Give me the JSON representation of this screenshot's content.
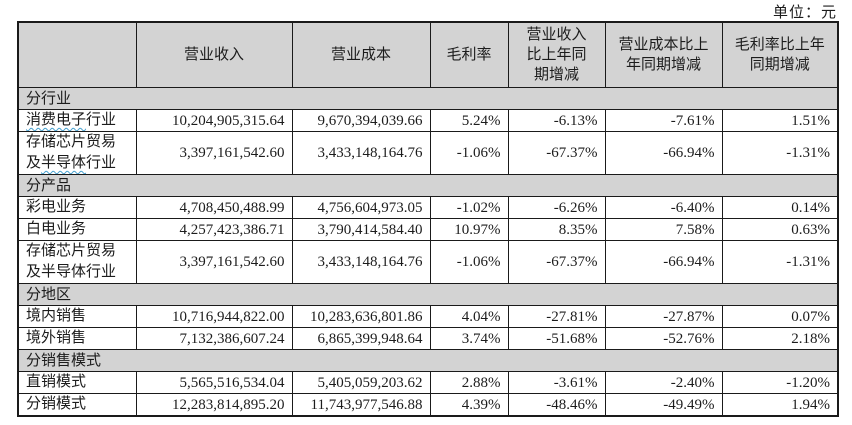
{
  "unit_label": "单位：元",
  "colors": {
    "header_bg": "#d3d3d3",
    "border": "#1a1a1a",
    "text": "#1c1c1c",
    "wavy_underline": "#44a0cf"
  },
  "table": {
    "columns": [
      "",
      "营业收入",
      "营业成本",
      "毛利率",
      "营业收入\n比上年同\n期增减",
      "营业成本比上\n年同期增减",
      "毛利率比上年\n同期增减"
    ],
    "sections": [
      {
        "label": "分行业",
        "rows": [
          {
            "label": "消费电子行业",
            "wavy": "消费电子",
            "cells": [
              "10,204,905,315.64",
              "9,670,394,039.66",
              "5.24%",
              "-6.13%",
              "-7.61%",
              "1.51%"
            ]
          },
          {
            "label": "存储芯片贸易\n及半导体行业",
            "wavy": "半导体",
            "cells": [
              "3,397,161,542.60",
              "3,433,148,164.76",
              "-1.06%",
              "-67.37%",
              "-66.94%",
              "-1.31%"
            ]
          }
        ]
      },
      {
        "label": "分产品",
        "rows": [
          {
            "label": "彩电业务",
            "cells": [
              "4,708,450,488.99",
              "4,756,604,973.05",
              "-1.02%",
              "-6.26%",
              "-6.40%",
              "0.14%"
            ]
          },
          {
            "label": "白电业务",
            "cells": [
              "4,257,423,386.71",
              "3,790,414,584.40",
              "10.97%",
              "8.35%",
              "7.58%",
              "0.63%"
            ]
          },
          {
            "label": "存储芯片贸易\n及半导体行业",
            "cells": [
              "3,397,161,542.60",
              "3,433,148,164.76",
              "-1.06%",
              "-67.37%",
              "-66.94%",
              "-1.31%"
            ]
          }
        ]
      },
      {
        "label": "分地区",
        "rows": [
          {
            "label": "境内销售",
            "cells": [
              "10,716,944,822.00",
              "10,283,636,801.86",
              "4.04%",
              "-27.81%",
              "-27.87%",
              "0.07%"
            ]
          },
          {
            "label": "境外销售",
            "cells": [
              "7,132,386,607.24",
              "6,865,399,948.64",
              "3.74%",
              "-51.68%",
              "-52.76%",
              "2.18%"
            ]
          }
        ]
      },
      {
        "label": "分销售模式",
        "rows": [
          {
            "label": "直销模式",
            "cells": [
              "5,565,516,534.04",
              "5,405,059,203.62",
              "2.88%",
              "-3.61%",
              "-2.40%",
              "-1.20%"
            ]
          },
          {
            "label": "分销模式",
            "cells": [
              "12,283,814,895.20",
              "11,743,977,546.88",
              "4.39%",
              "-48.46%",
              "-49.49%",
              "1.94%"
            ]
          }
        ]
      }
    ]
  }
}
